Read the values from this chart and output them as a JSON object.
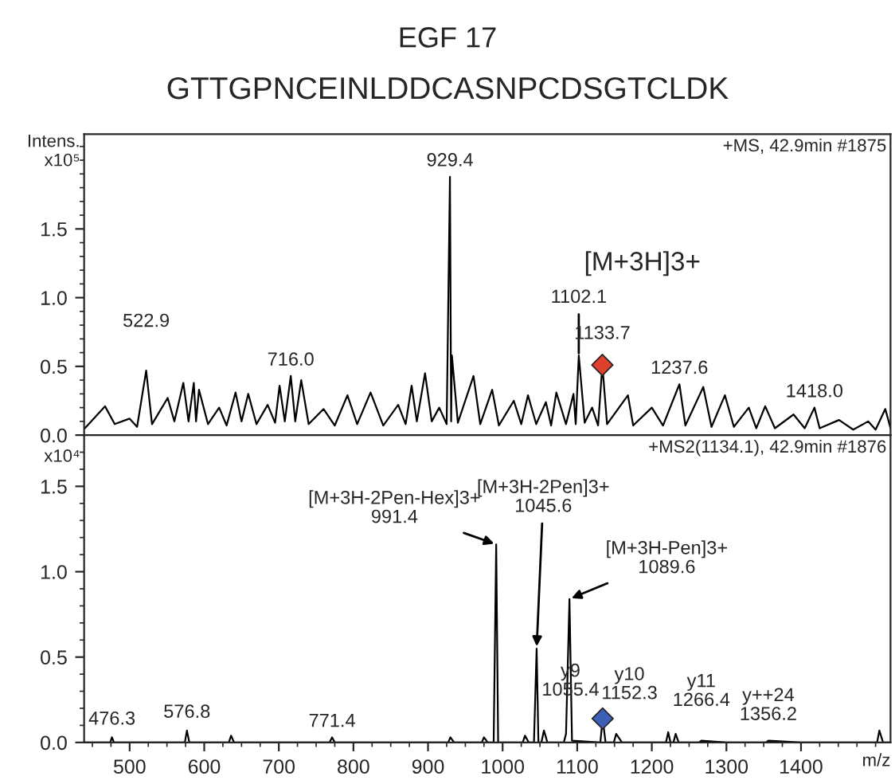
{
  "chart_data": [
    {
      "type": "line",
      "title": "EGF 17",
      "subtitle": "GTTGPNCEINLDDCASNPCDSGTCLDK",
      "ylabel": "Intens.\nx10⁵",
      "xlim": [
        439,
        1520
      ],
      "ylim": [
        0,
        2.19
      ],
      "xticks": [
        500,
        600,
        700,
        800,
        900,
        1000,
        1100,
        1200,
        1300,
        1400
      ],
      "yticks": [
        {
          "value": 0,
          "label": "0.0"
        },
        {
          "value": 0.5,
          "label": "0.5"
        },
        {
          "value": 1.0,
          "label": "1.0"
        },
        {
          "value": 1.5,
          "label": "1.5"
        }
      ],
      "tick_labels": "y",
      "grid": false,
      "series": [
        {
          "color": "#000000",
          "x": [
            440,
            467,
            480,
            500,
            510,
            522.2,
            530,
            551,
            560,
            572,
            579,
            586,
            589,
            593,
            605,
            620,
            630,
            642,
            650,
            659,
            670,
            685,
            695,
            701,
            708,
            716,
            722,
            730,
            740,
            760,
            775,
            792,
            805,
            823,
            840,
            860,
            870,
            878,
            885,
            896,
            905,
            915,
            925,
            929.4,
            931,
            932,
            940,
            961,
            970,
            986,
            995,
            1015,
            1025,
            1034,
            1045,
            1058,
            1065,
            1072,
            1085,
            1095,
            1098,
            1102.1,
            1110,
            1120,
            1128,
            1133.7,
            1140,
            1168,
            1175,
            1200,
            1215,
            1237,
            1245,
            1269,
            1280,
            1298,
            1310,
            1330,
            1340,
            1352,
            1365,
            1390,
            1405,
            1418,
            1425,
            1451,
            1470,
            1490,
            1500,
            1513,
            1520
          ],
          "values": [
            0.05,
            0.21,
            0.08,
            0.12,
            0.06,
            0.47,
            0.08,
            0.27,
            0.1,
            0.38,
            0.1,
            0.38,
            0.1,
            0.33,
            0.08,
            0.2,
            0.07,
            0.31,
            0.1,
            0.3,
            0.08,
            0.22,
            0.09,
            0.36,
            0.1,
            0.43,
            0.1,
            0.4,
            0.08,
            0.19,
            0.07,
            0.29,
            0.08,
            0.31,
            0.07,
            0.22,
            0.08,
            0.36,
            0.1,
            0.45,
            0.1,
            0.2,
            0.08,
            1.88,
            0.1,
            0.58,
            0.09,
            0.43,
            0.08,
            0.33,
            0.07,
            0.25,
            0.08,
            0.29,
            0.08,
            0.24,
            0.07,
            0.31,
            0.08,
            0.3,
            0.08,
            0.58,
            0.09,
            0.2,
            0.07,
            0.51,
            0.08,
            0.29,
            0.07,
            0.2,
            0.07,
            0.37,
            0.07,
            0.35,
            0.06,
            0.29,
            0.06,
            0.2,
            0.05,
            0.21,
            0.05,
            0.15,
            0.05,
            0.2,
            0.05,
            0.11,
            0.04,
            0.1,
            0.04,
            0.19,
            0.05
          ]
        },
        {
          "type": "scatter",
          "color": "#e0402e",
          "marker": "diamond",
          "x": [
            1133.7
          ],
          "values": [
            0.51
          ]
        }
      ],
      "annotations": [
        "+MS, 42.9min #1875",
        "[M+3H]3+",
        {
          "text": "929.4",
          "x": 929.4,
          "y": 1.88
        },
        {
          "text": "522.9",
          "x": 522.2,
          "y": 0.47
        },
        {
          "text": "716.0",
          "x": 716,
          "y": 0.43
        },
        {
          "text": "1102.1",
          "x": 1102.1,
          "y": 0.58
        },
        {
          "text": "1133.7",
          "x": 1133.7,
          "y": 0.51
        },
        {
          "text": "1237.6",
          "x": 1237,
          "y": 0.37
        },
        {
          "text": "1418.0",
          "x": 1418,
          "y": 0.2
        }
      ]
    },
    {
      "type": "line",
      "ylabel": "x10⁴",
      "xlabel": "m/z",
      "xlim": [
        439,
        1520
      ],
      "ylim": [
        0,
        1.8
      ],
      "xticks": [
        500,
        600,
        700,
        800,
        900,
        1000,
        1100,
        1200,
        1300,
        1400
      ],
      "yticks": [
        {
          "value": 0,
          "label": "0.0"
        },
        {
          "value": 0.5,
          "label": "0.5"
        },
        {
          "value": 1.0,
          "label": "1.0"
        },
        {
          "value": 1.5,
          "label": "1.5"
        }
      ],
      "grid": false,
      "series": [
        {
          "color": "#000000",
          "x": [
            440,
            474,
            476.3,
            479,
            574,
            576.8,
            580,
            633,
            636,
            640,
            768,
            771.4,
            775,
            927,
            930,
            935,
            972,
            975,
            980,
            988,
            991.4,
            994,
            1027,
            1030,
            1035,
            1042,
            1045.6,
            1048,
            1052,
            1055.4,
            1060,
            1082,
            1085,
            1089.6,
            1093,
            1131,
            1134.1,
            1138,
            1149,
            1152.3,
            1160,
            1219,
            1222,
            1225,
            1229,
            1232,
            1236,
            1263,
            1266.4,
            1300,
            1353,
            1356.2,
            1400,
            1502,
            1505,
            1510,
            1520
          ],
          "values": [
            0,
            0,
            0.03,
            0,
            0,
            0.07,
            0,
            0,
            0.04,
            0,
            0,
            0.03,
            0,
            0,
            0.03,
            0,
            0,
            0.03,
            0,
            0,
            1.16,
            0,
            0,
            0.04,
            0,
            0,
            0.55,
            0,
            0,
            0.07,
            0,
            0,
            0.05,
            0.84,
            0.01,
            0,
            0.14,
            0,
            0,
            0.05,
            0,
            0,
            0.06,
            0,
            0,
            0.05,
            0,
            0,
            0.01,
            0,
            0,
            0.01,
            0,
            0,
            0.07,
            0,
            0
          ]
        },
        {
          "type": "scatter",
          "color": "#3d5fb5",
          "marker": "diamond",
          "x": [
            1134.1
          ],
          "values": [
            0.14
          ]
        }
      ],
      "annotations": [
        "+MS2(1134.1), 42.9min #1876",
        {
          "text": "[M+3H-2Pen-Hex]3+\n991.4",
          "x": 991.4,
          "y": 1.16
        },
        {
          "text": "[M+3H-2Pen]3+\n1045.6",
          "x": 1045.6,
          "y": 0.55
        },
        {
          "text": "[M+3H-Pen]3+\n1089.6",
          "x": 1089.6,
          "y": 0.84
        },
        {
          "text": "y9\n1055.4",
          "x": 1055.4,
          "y": 0.07
        },
        {
          "text": "y10\n1152.3",
          "x": 1152.3,
          "y": 0.05
        },
        {
          "text": "y11\n1266.4",
          "x": 1266.4,
          "y": 0.01
        },
        {
          "text": "y++24\n1356.2",
          "x": 1356.2,
          "y": 0.005
        },
        {
          "text": "476.3",
          "x": 476.3,
          "y": 0.03
        },
        {
          "text": "576.8",
          "x": 576.8,
          "y": 0.07
        },
        {
          "text": "771.4",
          "x": 771.4,
          "y": 0.03
        }
      ]
    }
  ]
}
